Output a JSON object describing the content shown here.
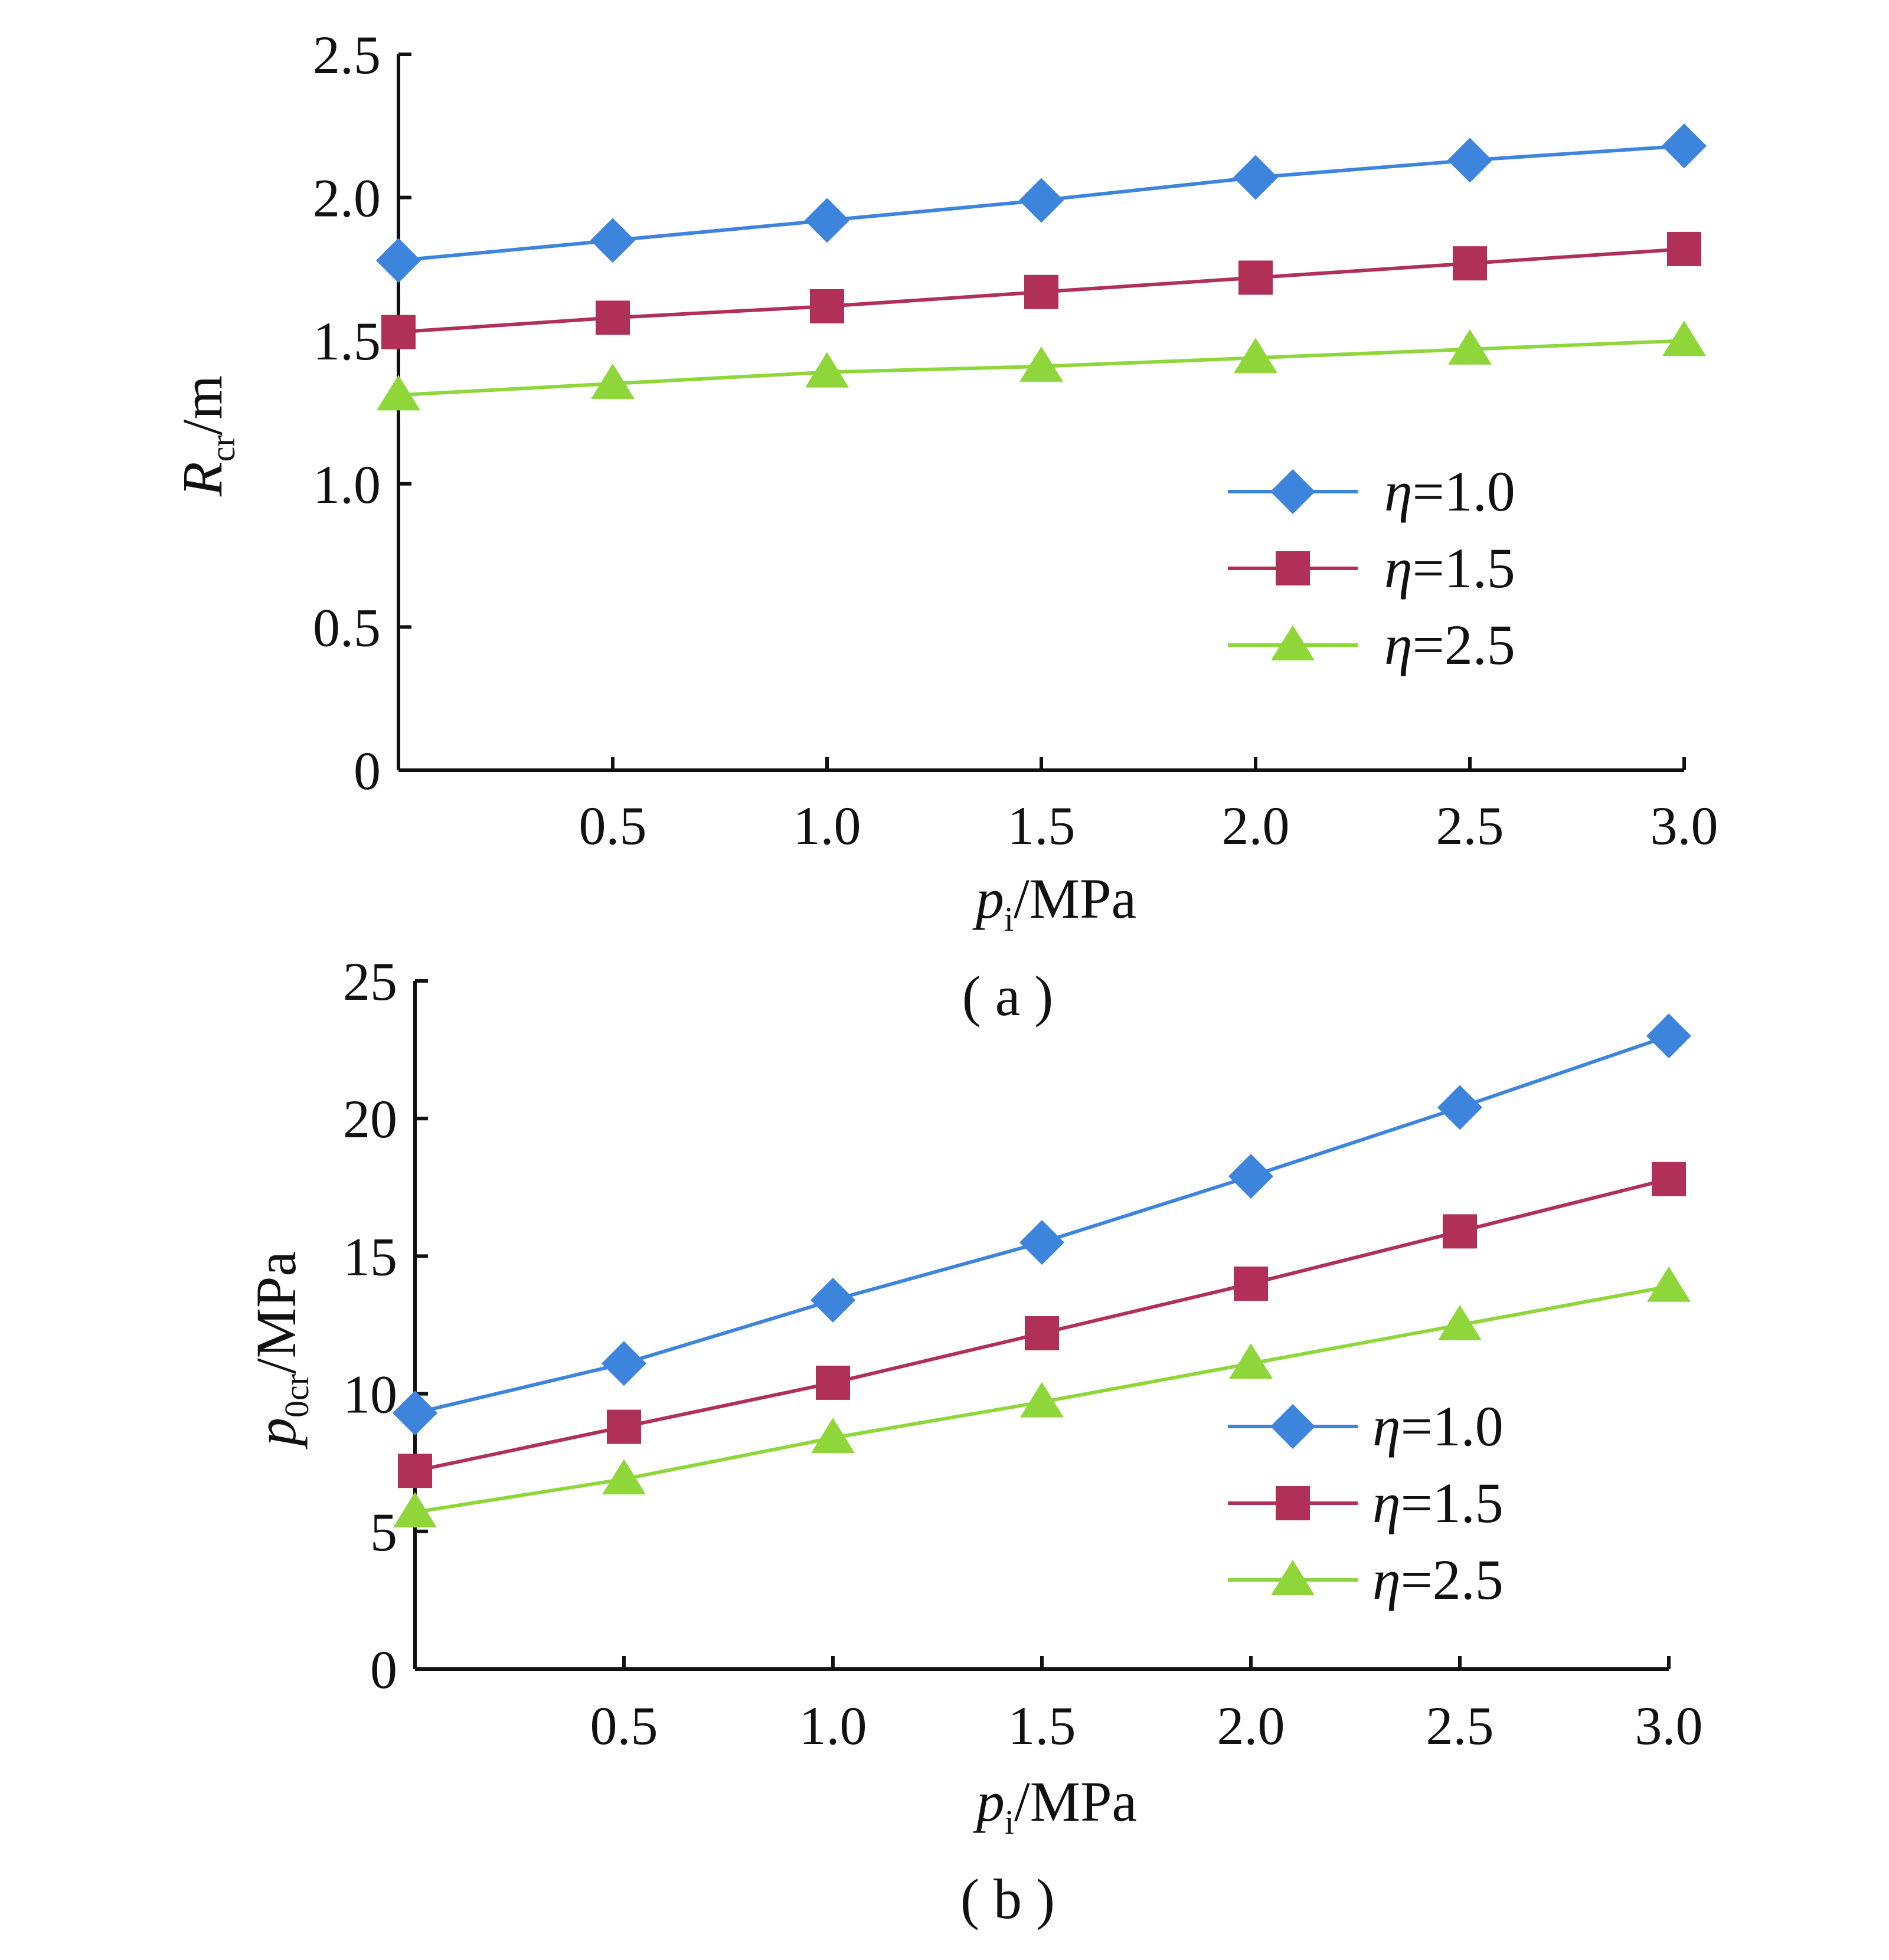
{
  "chart_data": [
    {
      "type": "line",
      "panel_label": "( a )",
      "x": [
        0,
        0.5,
        1.0,
        1.5,
        2.0,
        2.5,
        3.0
      ],
      "x_tick_labels": [
        "0.5",
        "1.0",
        "1.5",
        "2.0",
        "2.5",
        "3.0"
      ],
      "x_ticks": [
        0.5,
        1.0,
        1.5,
        2.0,
        2.5,
        3.0
      ],
      "xlim": [
        0,
        3.0
      ],
      "xlabel": {
        "main": "p",
        "sub": "i",
        "unit": "/MPa"
      },
      "ylim": [
        0,
        2.5
      ],
      "y_ticks": [
        0,
        0.5,
        1.0,
        1.5,
        2.0,
        2.5
      ],
      "y_tick_labels": [
        "0",
        "0.5",
        "1.0",
        "1.5",
        "2.0",
        "2.5"
      ],
      "ylabel": {
        "main": "R",
        "sub": "cr",
        "unit": "/m"
      },
      "grid": false,
      "legend_position": "center-right",
      "series": [
        {
          "name_symbol": "η",
          "name_value": "=1.0",
          "marker": "diamond",
          "color": "#3d84dc",
          "values": [
            1.78,
            1.85,
            1.92,
            1.99,
            2.07,
            2.13,
            2.18
          ]
        },
        {
          "name_symbol": "η",
          "name_value": "=1.5",
          "marker": "square",
          "color": "#b03057",
          "values": [
            1.53,
            1.58,
            1.62,
            1.67,
            1.72,
            1.77,
            1.82
          ]
        },
        {
          "name_symbol": "η",
          "name_value": "=2.5",
          "marker": "triangle",
          "color": "#8fd63a",
          "values": [
            1.31,
            1.35,
            1.39,
            1.41,
            1.44,
            1.47,
            1.5
          ]
        }
      ]
    },
    {
      "type": "line",
      "panel_label": "( b )",
      "x": [
        0,
        0.5,
        1.0,
        1.5,
        2.0,
        2.5,
        3.0
      ],
      "x_tick_labels": [
        "0.5",
        "1.0",
        "1.5",
        "2.0",
        "2.5",
        "3.0"
      ],
      "x_ticks": [
        0.5,
        1.0,
        1.5,
        2.0,
        2.5,
        3.0
      ],
      "xlim": [
        0,
        3.0
      ],
      "xlabel": {
        "main": "p",
        "sub": "i",
        "unit": "/MPa"
      },
      "ylim": [
        0,
        25
      ],
      "y_ticks": [
        0,
        5,
        10,
        15,
        20,
        25
      ],
      "y_tick_labels": [
        "0",
        "5",
        "10",
        "15",
        "20",
        "25"
      ],
      "ylabel": {
        "main": "p",
        "sub": "0cr",
        "unit": "/MPa"
      },
      "grid": false,
      "legend_position": "center-right",
      "series": [
        {
          "name_symbol": "η",
          "name_value": "=1.0",
          "marker": "diamond",
          "color": "#3d84dc",
          "values": [
            9.3,
            11.1,
            13.4,
            15.5,
            17.9,
            20.4,
            23.0
          ]
        },
        {
          "name_symbol": "η",
          "name_value": "=1.5",
          "marker": "square",
          "color": "#b03057",
          "values": [
            7.2,
            8.8,
            10.4,
            12.2,
            14.0,
            15.9,
            17.8
          ]
        },
        {
          "name_symbol": "η",
          "name_value": "=2.5",
          "marker": "triangle",
          "color": "#8fd63a",
          "values": [
            5.7,
            6.9,
            8.4,
            9.7,
            11.1,
            12.5,
            13.9
          ]
        }
      ]
    }
  ]
}
